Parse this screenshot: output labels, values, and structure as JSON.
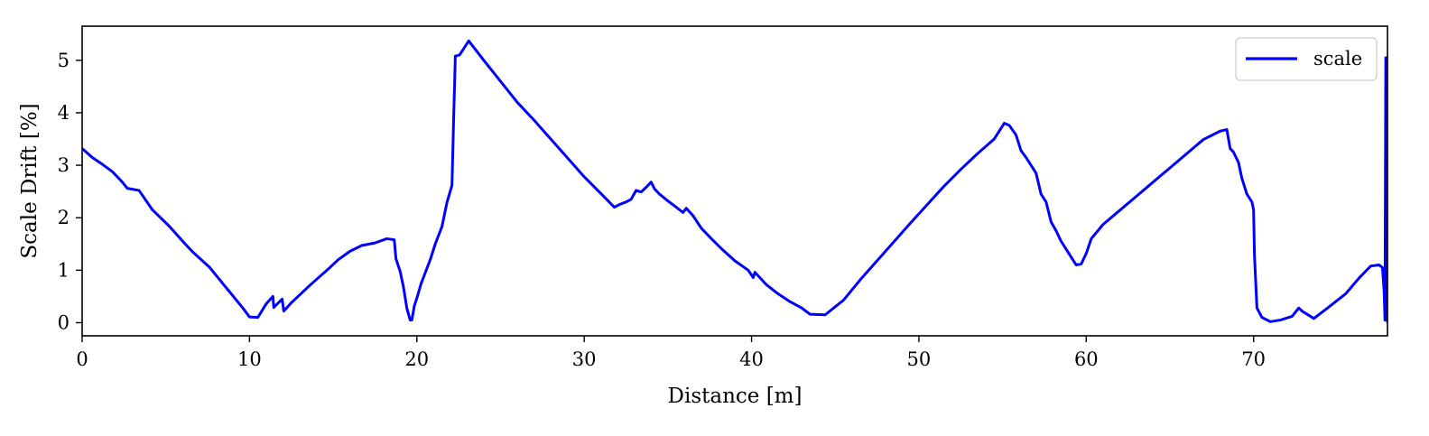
{
  "chart_data": {
    "type": "line",
    "xlabel": "Distance [m]",
    "ylabel": "Scale Drift [%]",
    "xlim": [
      0,
      78
    ],
    "ylim": [
      -0.25,
      5.65
    ],
    "xticks": [
      0,
      10,
      20,
      30,
      40,
      50,
      60,
      70
    ],
    "yticks": [
      0,
      1,
      2,
      3,
      4,
      5
    ],
    "grid": false,
    "legend": "top-right",
    "series": [
      {
        "name": "scale",
        "color": "#0000ff",
        "x": [
          0,
          0.6,
          1.2,
          1.8,
          2.4,
          2.7,
          3.4,
          4.2,
          5.2,
          6.1,
          6.6,
          7.6,
          8.6,
          9.6,
          10.0,
          10.5,
          11.0,
          11.4,
          11.45,
          11.95,
          12.05,
          12.5,
          13.1,
          13.6,
          14.2,
          14.7,
          15.3,
          16.0,
          16.7,
          17.5,
          18.2,
          18.65,
          18.75,
          19.0,
          19.2,
          19.4,
          19.6,
          19.7,
          19.85,
          20.05,
          20.25,
          20.5,
          20.8,
          21.1,
          21.5,
          21.8,
          22.1,
          22.2,
          22.3,
          22.55,
          23.1,
          24.0,
          25.0,
          26.0,
          27.0,
          28.0,
          29.0,
          30.0,
          31.0,
          31.8,
          32.1,
          32.5,
          32.8,
          33.1,
          33.4,
          33.7,
          34.0,
          34.2,
          34.5,
          35.0,
          35.5,
          35.9,
          36.1,
          36.5,
          37.0,
          37.6,
          38.2,
          39.0,
          39.8,
          40.1,
          40.2,
          40.9,
          41.5,
          42.3,
          43.0,
          43.5,
          44.4,
          45.5,
          46.5,
          47.5,
          48.5,
          49.5,
          50.5,
          51.5,
          52.5,
          53.5,
          54.5,
          55.1,
          55.4,
          55.8,
          56.1,
          56.4,
          56.7,
          57.0,
          57.3,
          57.6,
          57.9,
          58.2,
          58.5,
          58.8,
          59.1,
          59.4,
          59.7,
          60.0,
          60.3,
          61.0,
          62.0,
          63.0,
          64.0,
          65.0,
          66.0,
          67.0,
          68.0,
          68.4,
          68.6,
          68.8,
          69.1,
          69.3,
          69.6,
          69.9,
          70.0,
          70.05,
          70.2,
          70.5,
          71.0,
          71.6,
          72.3,
          72.7,
          72.9,
          73.6,
          74.5,
          75.5,
          76.3,
          77.0,
          77.5,
          77.7,
          77.8,
          77.85,
          77.9,
          78.0
        ],
        "y": [
          3.32,
          3.15,
          3.02,
          2.88,
          2.68,
          2.56,
          2.52,
          2.15,
          1.84,
          1.52,
          1.35,
          1.06,
          0.67,
          0.28,
          0.11,
          0.1,
          0.36,
          0.5,
          0.29,
          0.45,
          0.22,
          0.38,
          0.56,
          0.71,
          0.88,
          1.02,
          1.2,
          1.36,
          1.47,
          1.52,
          1.6,
          1.58,
          1.22,
          0.98,
          0.68,
          0.28,
          0.05,
          0.05,
          0.32,
          0.52,
          0.74,
          0.95,
          1.2,
          1.5,
          1.83,
          2.29,
          2.62,
          3.9,
          5.08,
          5.1,
          5.37,
          5.0,
          4.6,
          4.2,
          3.86,
          3.5,
          3.14,
          2.78,
          2.46,
          2.2,
          2.25,
          2.3,
          2.35,
          2.52,
          2.49,
          2.58,
          2.68,
          2.55,
          2.45,
          2.32,
          2.2,
          2.1,
          2.18,
          2.04,
          1.8,
          1.6,
          1.41,
          1.18,
          1.0,
          0.86,
          0.96,
          0.72,
          0.57,
          0.4,
          0.28,
          0.16,
          0.15,
          0.43,
          0.82,
          1.18,
          1.54,
          1.9,
          2.25,
          2.6,
          2.92,
          3.22,
          3.5,
          3.8,
          3.76,
          3.58,
          3.28,
          3.15,
          3.0,
          2.85,
          2.45,
          2.3,
          1.92,
          1.75,
          1.55,
          1.4,
          1.25,
          1.1,
          1.12,
          1.32,
          1.6,
          1.87,
          2.14,
          2.41,
          2.68,
          2.95,
          3.22,
          3.49,
          3.65,
          3.68,
          3.32,
          3.25,
          3.05,
          2.75,
          2.45,
          2.3,
          2.15,
          1.3,
          0.28,
          0.1,
          0.02,
          0.05,
          0.12,
          0.28,
          0.22,
          0.08,
          0.3,
          0.55,
          0.85,
          1.08,
          1.1,
          1.05,
          0.6,
          0.05,
          5.05,
          0.0
        ]
      }
    ]
  }
}
